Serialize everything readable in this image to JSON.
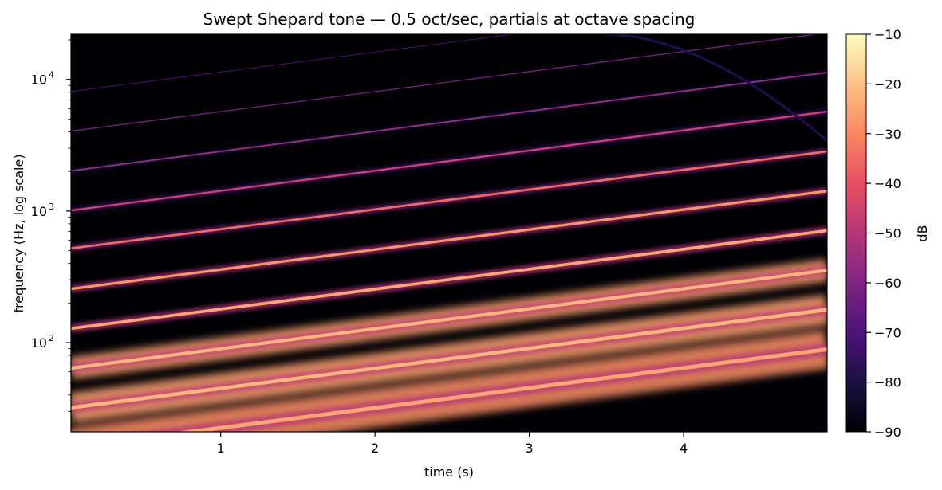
{
  "chart_data": {
    "type": "heatmap",
    "title": "Swept Shepard tone — 0.5 oct/sec, partials at octave spacing",
    "xlabel": "time (s)",
    "ylabel": "frequency (Hz, log scale)",
    "xlim": [
      0.03,
      4.93
    ],
    "ylim": [
      21,
      22050
    ],
    "yscale": "log",
    "x_ticks": [
      {
        "value": 1,
        "label": "1"
      },
      {
        "value": 2,
        "label": "2"
      },
      {
        "value": 3,
        "label": "3"
      },
      {
        "value": 4,
        "label": "4"
      }
    ],
    "y_ticks": [
      {
        "value": 100,
        "base": "10",
        "exp": "2"
      },
      {
        "value": 1000,
        "base": "10",
        "exp": "3"
      },
      {
        "value": 10000,
        "base": "10",
        "exp": "4"
      }
    ],
    "colorbar": {
      "label": "dB",
      "colormap": "magma",
      "range": [
        -90,
        -10
      ],
      "ticks": [
        "−90",
        "−80",
        "−70",
        "−60",
        "−50",
        "−40",
        "−30",
        "−20",
        "−10"
      ],
      "tick_values": [
        -90,
        -80,
        -70,
        -60,
        -50,
        -40,
        -30,
        -20,
        -10
      ]
    },
    "sweep_rate_oct_per_sec": 0.5,
    "partials": [
      {
        "start_hz": 16.0,
        "end_hz": 89.0,
        "level_db": -25
      },
      {
        "start_hz": 32.0,
        "end_hz": 178.0,
        "level_db": -22
      },
      {
        "start_hz": 64.0,
        "end_hz": 355.0,
        "level_db": -22
      },
      {
        "start_hz": 128.0,
        "end_hz": 710.0,
        "level_db": -25
      },
      {
        "start_hz": 256.0,
        "end_hz": 1420.0,
        "level_db": -28
      },
      {
        "start_hz": 520.0,
        "end_hz": 2840.0,
        "level_db": -35
      },
      {
        "start_hz": 1010.0,
        "end_hz": 5700.0,
        "level_db": -45
      },
      {
        "start_hz": 2020.0,
        "end_hz": 11300.0,
        "level_db": -55
      },
      {
        "start_hz": 4050.0,
        "end_hz": 22600.0,
        "level_db": -63
      },
      {
        "start_hz": 8100.0,
        "end_hz": 45000.0,
        "level_db": -70
      }
    ],
    "alias_curve": {
      "start_time_s": 3.5,
      "start_hz": 22050,
      "end_time_s": 4.93,
      "end_hz": 3400,
      "level_db": -80
    }
  }
}
